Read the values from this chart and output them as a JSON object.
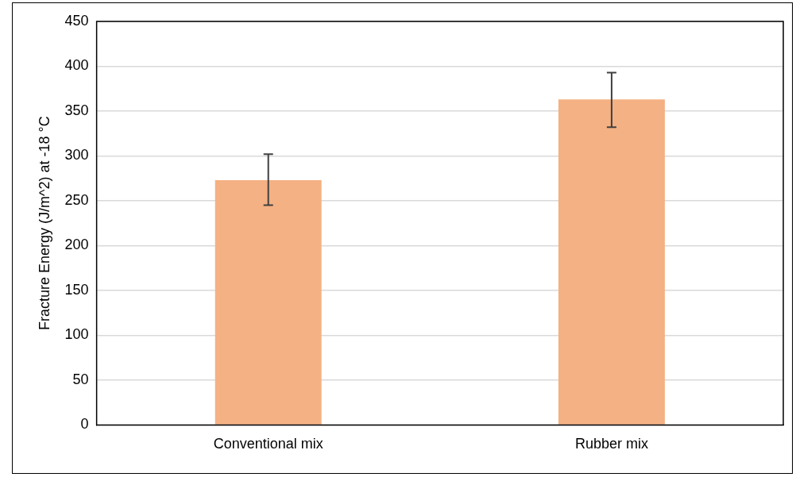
{
  "chart_data": {
    "type": "bar",
    "ylabel": "Fracture Energy (J/m^2) at -18 °C",
    "categories": [
      "Conventional mix",
      "Rubber mix"
    ],
    "values": [
      273,
      363
    ],
    "color": "#f4b183",
    "errors": [
      [
        245,
        302
      ],
      [
        332,
        393
      ]
    ],
    "ylim": [
      0,
      450
    ],
    "yticks": [
      0,
      50,
      100,
      150,
      200,
      250,
      300,
      350,
      400,
      450
    ],
    "grid": "y",
    "legend": false
  }
}
